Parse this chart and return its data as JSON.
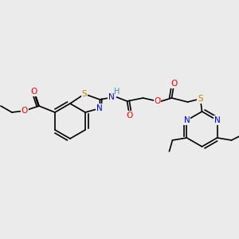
{
  "background_color": "#ebebeb",
  "bond_color": "#000000",
  "atom_colors": {
    "S": "#b8860b",
    "N": "#0000ff",
    "O": "#ff0000",
    "H": "#4a9090",
    "C": "#000000"
  },
  "figsize": [
    3.0,
    3.0
  ],
  "dpi": 100
}
